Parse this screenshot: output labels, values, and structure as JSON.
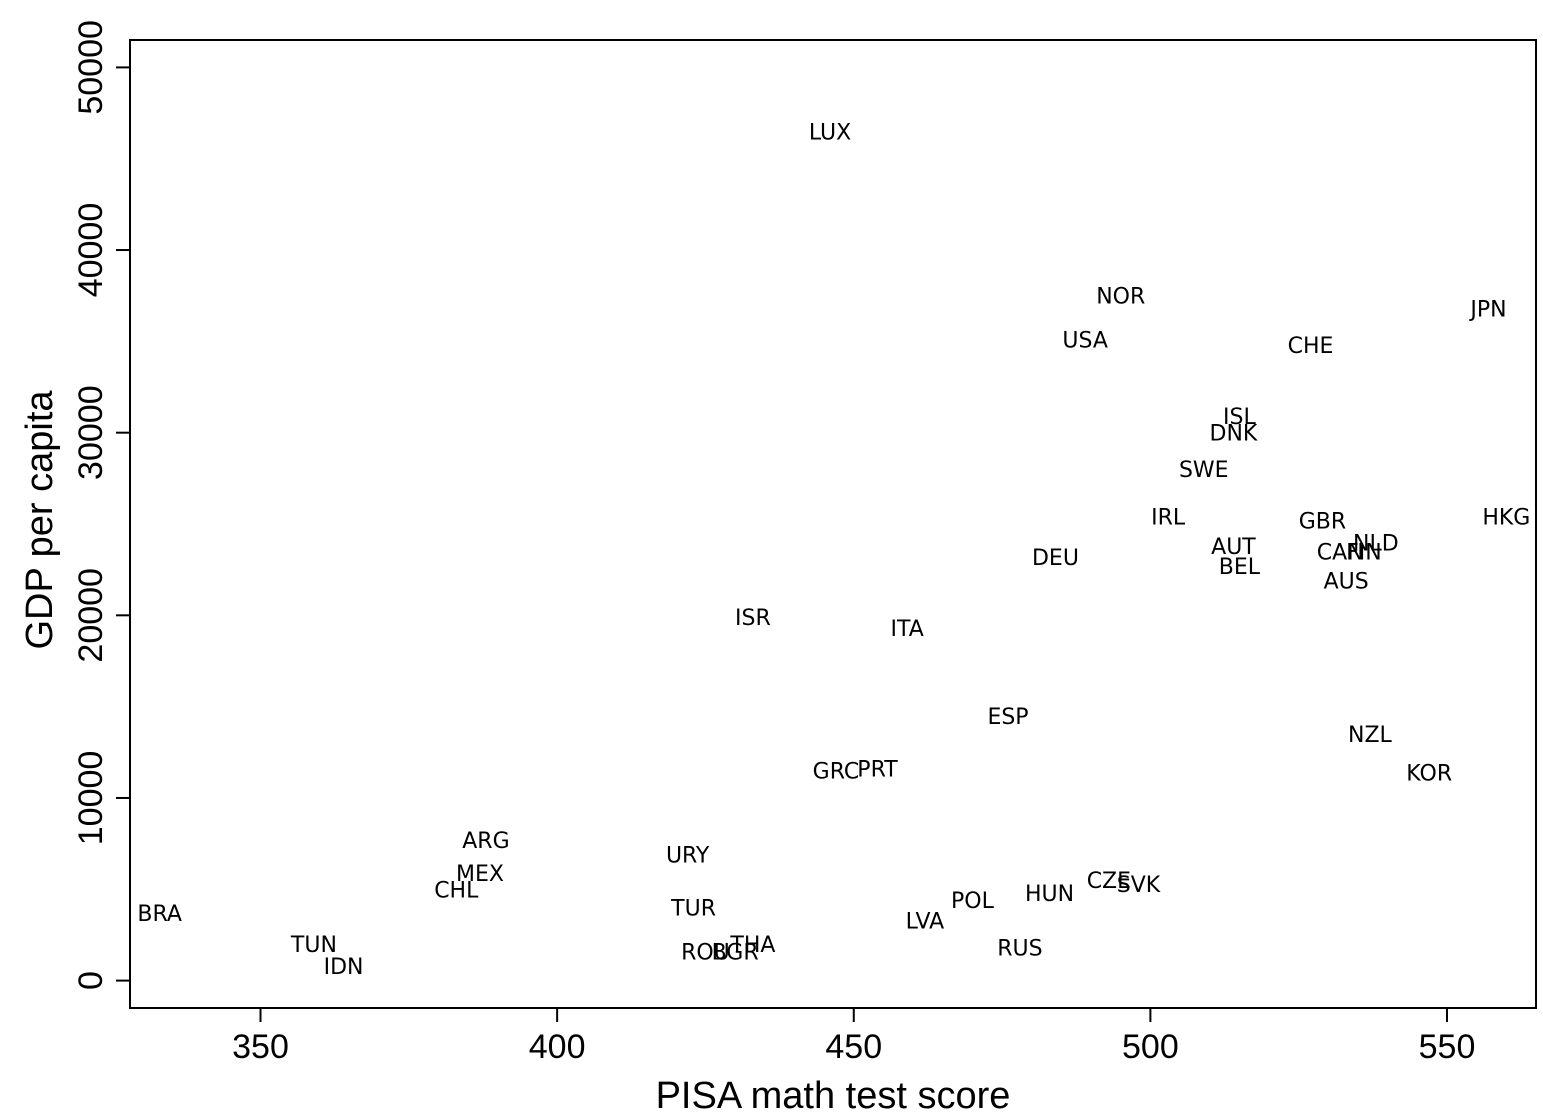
{
  "chart_data": {
    "type": "scatter",
    "xlabel": "PISA math test score",
    "ylabel": "GDP per capita",
    "xlim": [
      328,
      565
    ],
    "ylim": [
      -1500,
      51500
    ],
    "x_ticks": [
      350,
      400,
      450,
      500,
      550
    ],
    "y_ticks": [
      0,
      10000,
      20000,
      30000,
      40000,
      50000
    ],
    "grid": false,
    "points": [
      {
        "label": "LUX",
        "x": 446,
        "y": 46500
      },
      {
        "label": "NOR",
        "x": 495,
        "y": 37500
      },
      {
        "label": "JPN",
        "x": 557,
        "y": 36800
      },
      {
        "label": "USA",
        "x": 489,
        "y": 35100
      },
      {
        "label": "CHE",
        "x": 527,
        "y": 34800
      },
      {
        "label": "ISL",
        "x": 515,
        "y": 30900
      },
      {
        "label": "DNK",
        "x": 514,
        "y": 30000
      },
      {
        "label": "SWE",
        "x": 509,
        "y": 28000
      },
      {
        "label": "IRL",
        "x": 503,
        "y": 25400
      },
      {
        "label": "HKG",
        "x": 560,
        "y": 25400
      },
      {
        "label": "GBR",
        "x": 529,
        "y": 25200
      },
      {
        "label": "NLD",
        "x": 538,
        "y": 24000
      },
      {
        "label": "AUT",
        "x": 514,
        "y": 23800
      },
      {
        "label": "CAN",
        "x": 532,
        "y": 23500
      },
      {
        "label": "FIN",
        "x": 536,
        "y": 23500
      },
      {
        "label": "DEU",
        "x": 484,
        "y": 23200
      },
      {
        "label": "BEL",
        "x": 515,
        "y": 22700
      },
      {
        "label": "AUS",
        "x": 533,
        "y": 21900
      },
      {
        "label": "ISR",
        "x": 433,
        "y": 19900
      },
      {
        "label": "ITA",
        "x": 459,
        "y": 19300
      },
      {
        "label": "ESP",
        "x": 476,
        "y": 14500
      },
      {
        "label": "NZL",
        "x": 537,
        "y": 13500
      },
      {
        "label": "GRC",
        "x": 447,
        "y": 11500
      },
      {
        "label": "PRT",
        "x": 454,
        "y": 11600
      },
      {
        "label": "KOR",
        "x": 547,
        "y": 11400
      },
      {
        "label": "ARG",
        "x": 388,
        "y": 7700
      },
      {
        "label": "URY",
        "x": 422,
        "y": 6900
      },
      {
        "label": "MEX",
        "x": 387,
        "y": 5900
      },
      {
        "label": "CZE",
        "x": 493,
        "y": 5500
      },
      {
        "label": "SVK",
        "x": 498,
        "y": 5300
      },
      {
        "label": "CHL",
        "x": 383,
        "y": 5000
      },
      {
        "label": "HUN",
        "x": 483,
        "y": 4800
      },
      {
        "label": "POL",
        "x": 470,
        "y": 4400
      },
      {
        "label": "TUR",
        "x": 423,
        "y": 4000
      },
      {
        "label": "BRA",
        "x": 333,
        "y": 3700
      },
      {
        "label": "LVA",
        "x": 462,
        "y": 3300
      },
      {
        "label": "TUN",
        "x": 359,
        "y": 2000
      },
      {
        "label": "THA",
        "x": 433,
        "y": 2000
      },
      {
        "label": "RUS",
        "x": 478,
        "y": 1800
      },
      {
        "label": "ROU",
        "x": 425,
        "y": 1600
      },
      {
        "label": "BGR",
        "x": 430,
        "y": 1600
      },
      {
        "label": "IDN",
        "x": 364,
        "y": 800
      }
    ]
  }
}
